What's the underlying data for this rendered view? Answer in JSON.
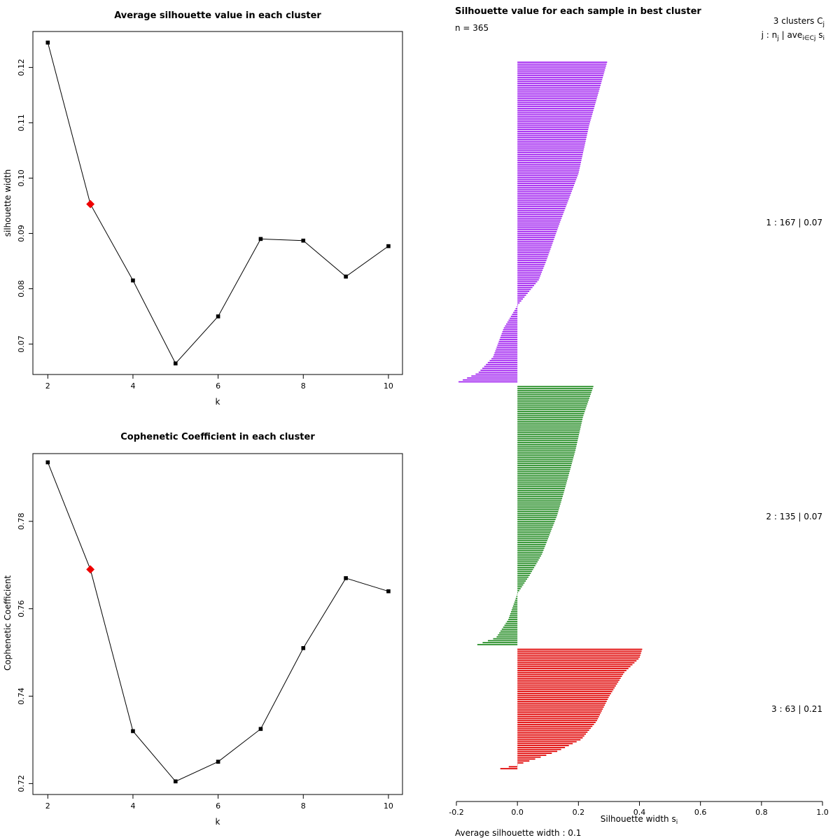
{
  "colors": {
    "line": "#000000",
    "highlight": "#ee0000",
    "cluster1": "#a020f0",
    "cluster2": "#228b22",
    "cluster3": "#e00000"
  },
  "chart_data": [
    {
      "type": "line",
      "title": "Average silhouette value in each cluster",
      "xlabel": "k",
      "ylabel": "silhouette width",
      "x": [
        2,
        3,
        4,
        5,
        6,
        7,
        8,
        9,
        10
      ],
      "values": [
        0.1245,
        0.0953,
        0.0815,
        0.0665,
        0.075,
        0.089,
        0.0887,
        0.0822,
        0.0877
      ],
      "highlight_index": 1,
      "xlim": [
        1.65,
        10.33
      ],
      "ylim": [
        0.0645,
        0.1265
      ],
      "xticks": [
        2,
        4,
        6,
        8,
        10
      ],
      "xtick_labels": [
        "2",
        "4",
        "6",
        "8",
        "10"
      ],
      "yticks": [
        0.07,
        0.08,
        0.09,
        0.1,
        0.11,
        0.12
      ],
      "ytick_labels": [
        "0.07",
        "0.08",
        "0.09",
        "0.10",
        "0.11",
        "0.12"
      ],
      "grid": false,
      "marker": "square",
      "highlight_marker": "diamond"
    },
    {
      "type": "line",
      "title": "Cophenetic Coefficient in each cluster",
      "xlabel": "k",
      "ylabel": "Cophenetic Coefficient",
      "x": [
        2,
        3,
        4,
        5,
        6,
        7,
        8,
        9,
        10
      ],
      "values": [
        0.7935,
        0.769,
        0.732,
        0.7205,
        0.725,
        0.7325,
        0.751,
        0.767,
        0.764
      ],
      "highlight_index": 1,
      "xlim": [
        1.65,
        10.33
      ],
      "ylim": [
        0.7175,
        0.7955
      ],
      "xticks": [
        2,
        4,
        6,
        8,
        10
      ],
      "xtick_labels": [
        "2",
        "4",
        "6",
        "8",
        "10"
      ],
      "yticks": [
        0.72,
        0.74,
        0.76,
        0.78
      ],
      "ytick_labels": [
        "0.72",
        "0.74",
        "0.76",
        "0.78"
      ],
      "grid": false,
      "marker": "square",
      "highlight_marker": "diamond"
    },
    {
      "type": "bar",
      "orientation": "horizontal",
      "title": "Silhouette value for each sample in best cluster",
      "n_label": "n = 365",
      "n_total": 365,
      "average_silhouette_width": 0.1,
      "footer": "Average silhouette width :  0.1",
      "legend": {
        "line1_main": "3  clusters  C",
        "line1_sub": "j",
        "p1": "j :  n",
        "s1": "j",
        "p2": " | ave",
        "s2": "i∈Cj",
        "p3": " s",
        "s3": "i"
      },
      "xlabel_main": "Silhouette width s",
      "xlabel_sub": "i",
      "xlim": [
        -0.2,
        1.0
      ],
      "xticks": [
        -0.2,
        0,
        0.2,
        0.4,
        0.6,
        0.8,
        1.0
      ],
      "xtick_labels": [
        "-0.2",
        "0.0",
        "0.2",
        "0.4",
        "0.6",
        "0.8",
        "1.0"
      ],
      "clusters": [
        {
          "id": 1,
          "n": 167,
          "avg": 0.07,
          "label": "1 :  167  |  0.07",
          "color": "#a020f0",
          "profile": [
            [
              0,
              0.295
            ],
            [
              0.1,
              0.265
            ],
            [
              0.2,
              0.235
            ],
            [
              0.35,
              0.2
            ],
            [
              0.5,
              0.14
            ],
            [
              0.62,
              0.095
            ],
            [
              0.68,
              0.07
            ],
            [
              0.76,
              0
            ],
            [
              0.83,
              -0.045
            ],
            [
              0.92,
              -0.08
            ],
            [
              0.97,
              -0.13
            ],
            [
              1,
              -0.2
            ]
          ]
        },
        {
          "id": 2,
          "n": 135,
          "avg": 0.07,
          "label": "2 :  135  |  0.07",
          "color": "#228b22",
          "profile": [
            [
              0,
              0.25
            ],
            [
              0.12,
              0.215
            ],
            [
              0.25,
              0.19
            ],
            [
              0.4,
              0.155
            ],
            [
              0.5,
              0.13
            ],
            [
              0.65,
              0.08
            ],
            [
              0.73,
              0.04
            ],
            [
              0.8,
              0
            ],
            [
              0.9,
              -0.03
            ],
            [
              0.97,
              -0.07
            ],
            [
              1,
              -0.14
            ]
          ]
        },
        {
          "id": 3,
          "n": 63,
          "avg": 0.21,
          "label": "3 :  63  |  0.21",
          "color": "#e00000",
          "profile": [
            [
              0,
              0.41
            ],
            [
              0.08,
              0.4
            ],
            [
              0.2,
              0.35
            ],
            [
              0.4,
              0.3
            ],
            [
              0.6,
              0.26
            ],
            [
              0.75,
              0.21
            ],
            [
              0.85,
              0.13
            ],
            [
              0.92,
              0.05
            ],
            [
              0.96,
              0
            ],
            [
              1,
              -0.07
            ]
          ]
        }
      ]
    }
  ]
}
